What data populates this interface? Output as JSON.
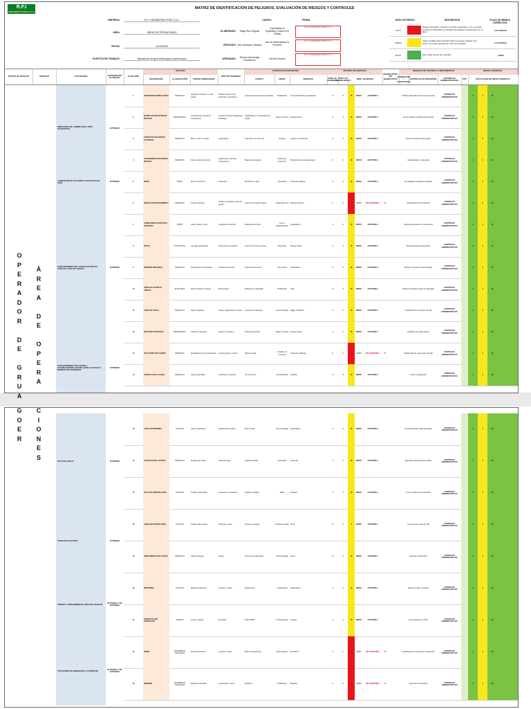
{
  "header": {
    "logo_text": "R.F.I",
    "logo_sub": "INGENIERIAS PERU S.A.C",
    "title": "MATRIZ DE IDENTIFICACIÓN DE PELIGROS, EVALUACIÓN DE RIESGOS Y CONTROLES",
    "empresa_label": "EMPRESA",
    "empresa_value": "R.F.I. INGENIERIAS PERÚ S.A.C",
    "area_label": "AREA",
    "area_value": "AREAS DE OPERACIONES",
    "fecha_label": "FECHA",
    "fecha_value": "01/10/2016",
    "puestos_label": "PUESTOS DE TRABAJO",
    "puestos_value": "Operadores de grúa telescópica y camión grúa",
    "cargo_label": "CARGO",
    "firma_label": "FIRMA",
    "elaborado_label": "ELABORADO",
    "elaborado_name": "Edgar Ruiz Delgado",
    "elaborado_cargo": "Especialista en Seguridad y Salud en el Trabajo",
    "revisado_label": "REVISADO",
    "revisado_name": "Aina Velasquez Jáuregui",
    "revisado_cargo": "Jefe de Administración y Procesos",
    "aprobado_label": "APROBADO",
    "aprobado_name": "Richard Artunduaga Rivadeneira",
    "aprobado_cargo": "Gerente General",
    "stamp_text": "R.F.I. INGENIERIAS PERU S.A.C"
  },
  "legend": {
    "h_nivel": "NIVEL DE RIESGO",
    "h_desc": "DESCRIPCIÓN",
    "h_plazo": "PLAZO DE MEDIDA CORRECTIVA",
    "rows": [
      {
        "level": "ALTO",
        "color": "#e8141b",
        "desc": "Riesgo intolerable, requiere controles especiales, si no se puede controlar el PELIGRO se paraliza los trabajos operacionales en la labor.",
        "action": "0-24 HORAS"
      },
      {
        "level": "MEDIO",
        "color": "#f8e71c",
        "desc": "Iniciar medidas para eliminar/reducir el riesgo. Evaluar si la acción se puede ejecutar de manera inmediata.",
        "action": "0-72 HORAS"
      },
      {
        "level": "BAJO",
        "color": "#4caf50",
        "desc": "Este riesgo puede ser tolerable.",
        "action": "1 MES"
      }
    ]
  },
  "columns": {
    "puesto": "PUESTO DE TRABAJO",
    "proceso": "PROCESO",
    "actividades": "ACTIVIDADES",
    "rutinaria": "RUTINARIA/NO RUTINARIA",
    "num": "N° PELIGRO",
    "peligro_group": "PELIGRO",
    "descripcion": "DESCRIPCIÓN",
    "clasificacion": "CLASIFICACIÓN",
    "fuente": "FUENTE GENERADORA",
    "efectos": "EFECTOS POSIBLES",
    "controles_group": "CONTROLES EXISTENTES",
    "cuenta": "CUENTA",
    "medio": "MEDIO",
    "individuo": "INDIVIDUO",
    "criterio_group": "CRITERIO DE RIESGOS",
    "severidad": "NIVEL DE SEVERIDAD",
    "consecuencia": "NIVEL DE CONSECUENCIA",
    "nivel": "NIVEL DE RIESGO",
    "significativo": "SIGNIFICATIVO / NO SIGNIFICATIVO",
    "medidas_group": "MEDIDAS DE CONTROL A IMPLEMENTAR",
    "eliminacion": "ELIMINACIÓN / SUSTITUCIÓN",
    "ingenieria": "CONTROLES DE INGENIERÍA",
    "administrativos": "CONTROLES ADMINISTRATIVOS",
    "epp": "EPP",
    "residual_group": "RIESGO RESIDUAL",
    "evaluacion": "EVALUACIÓN DE RIESGO RESIDUAL"
  },
  "area_label_chars": [
    "O",
    "P",
    "E",
    "R",
    "A",
    "D",
    "O",
    "R",
    "",
    "D",
    "E",
    "",
    "G",
    "R",
    "U",
    "A",
    "",
    "Y",
    "",
    "R",
    "I",
    "O",
    "S",
    "G",
    "O",
    "E",
    "R"
  ],
  "area_label_chars_2": [
    "Á",
    "R",
    "E",
    "A",
    "",
    "D",
    "E",
    "",
    "O",
    "P",
    "E",
    "R",
    "A",
    "C",
    "I",
    "O",
    "N",
    "E",
    "S"
  ],
  "activities_p1": [
    {
      "name": "INSPECCIÓN DEL CAMIÓN GRÚA / GRÚA TELESCÓPICA",
      "routine": "RUTINARIA"
    },
    {
      "name": "CONDUCCIÓN DE UN VEHÍCULO PESADO HACIA ZONA",
      "routine": "RUTINARIA"
    },
    {
      "name": "POSICIONAMIENTO DEL EQUIPO EN ZONA DE TRABAJO / IZAJE DE CARGAS",
      "routine": "RUTINARIA"
    },
    {
      "name": "POSICIONAMIENTO DEL EQUIPO Y ESTABILIZADORES CON RELACIÓN A CARGAS AL MOMENTO DE MANIOBRAS",
      "routine": "RUTINARIA"
    }
  ],
  "activities_p2": [
    {
      "name": "IZAJE DE CARGAS",
      "routine": "RUTINARIA"
    },
    {
      "name": "TRABAJOS EN ALTURA",
      "routine": "RUTINARIA"
    },
    {
      "name": "LIMPIEZA Y MANTENIMIENTO, ORDEN DE TRABAJO",
      "routine": "RUTINARIA Y NO RUTINARIA"
    },
    {
      "name": "SITUACIONES DE EMERGENCIA / ACCIDENTES",
      "routine": "RUTINARIA Y NO RUTINARIA"
    }
  ],
  "rows_p1": [
    {
      "n": "1",
      "desc": "SUPERFICIES IRREGULARES",
      "cls": "MECÁNICO",
      "fte": "Superficie inestable o en mal estado",
      "eff": "Caídas al mismo nivel, torceduras, contusiones",
      "cur": "Inspección previa del área de trabajo",
      "med": "Señalización",
      "ind": "Uso de EPP básico, capacitación",
      "ns": "4",
      "nc": "4",
      "nr": "16",
      "lvl": "MEDIO",
      "acp": "ACEPTABLE",
      "sig": "",
      "ctrl": "Verificar estado del terreno antes de operar",
      "adm": "CONTROLES ADMINISTRATIVOS",
      "r": [
        "4",
        "4",
        "16"
      ]
    },
    {
      "n": "2",
      "desc": "MANIPULACIÓN DE PIEZAS PESADAS",
      "cls": "ERGONÓMICO",
      "fte": "Levantamiento manual de componentes",
      "eff": "Lesiones músculo-esqueléticas, lumbalgias",
      "cur": "Capacitación en manipulación de cargas",
      "med": "Apoyo mecánico",
      "ind": "Pausas activas",
      "ns": "4",
      "nc": "4",
      "nr": "16",
      "lvl": "MEDIO",
      "acp": "ACEPTABLE",
      "sig": "",
      "ctrl": "Uso de ayudas mecánicas para levantar",
      "adm": "CONTROLES ADMINISTRATIVOS",
      "r": [
        "4",
        "4",
        "16"
      ]
    },
    {
      "n": "3",
      "desc": "CONTACTO CON PARTES CALIENTES",
      "cls": "MECÁNICO",
      "fte": "Motor y tubo de escape",
      "eff": "Quemaduras",
      "cur": "Inspección con motor frío",
      "med": "Guardas",
      "ind": "Guantes de protección",
      "ns": "4",
      "nc": "4",
      "nr": "16",
      "lvl": "MEDIO",
      "acp": "ACEPTABLE",
      "sig": "",
      "ctrl": "Esperar enfriamiento del equipo",
      "adm": "CONTROLES ADMINISTRATIVOS",
      "r": [
        "4",
        "4",
        "16"
      ]
    },
    {
      "n": "4",
      "desc": "ATRAPAMIENTO EN PARTES MÓVILES",
      "cls": "MECÁNICO",
      "fte": "Partes móviles de la grúa",
      "eff": "Atrapamiento, fracturas, amputaciones",
      "cur": "Bloqueo de energías",
      "med": "Guardas de protección",
      "ind": "Procedimiento de trabajo seguro",
      "ns": "4",
      "nc": "4",
      "nr": "16",
      "lvl": "MEDIO",
      "acp": "ACEPTABLE",
      "sig": "",
      "ctrl": "Aplicar bloqueo y etiquetado",
      "adm": "CONTROLES ADMINISTRATIVOS",
      "r": [
        "4",
        "4",
        "16"
      ]
    },
    {
      "n": "5",
      "desc": "RUIDO",
      "cls": "FÍSICO",
      "fte": "Motor del vehículo",
      "eff": "Hipoacusia",
      "cur": "Monitoreo de ruido",
      "med": "Silenciador",
      "ind": "Protección auditiva",
      "ns": "4",
      "nc": "4",
      "nr": "16",
      "lvl": "MEDIO",
      "acp": "ACEPTABLE",
      "sig": "",
      "ctrl": "Uso obligatorio de tapones auditivos",
      "adm": "CONTROLES ADMINISTRATIVOS",
      "r": [
        "4",
        "4",
        "16"
      ]
    },
    {
      "n": "6",
      "desc": "VEHÍCULOS EN MOVIMIENTO",
      "cls": "MECÁNICO",
      "fte": "Tránsito vehicular",
      "eff": "Choques, volcaduras, lesiones graves",
      "cur": "Licencia de conducir vigente",
      "med": "Señalización vial",
      "ind": "Manejo defensivo",
      "ns": "2",
      "nc": "2",
      "nr": "4",
      "lvl": "ALTO",
      "acp": "NO ACEPTABLE",
      "sig": "S",
      "ctrl": "Respetar límites de velocidad",
      "adm": "CONTROLES ADMINISTRATIVOS",
      "r": [
        "4",
        "4",
        "16"
      ]
    },
    {
      "n": "7",
      "desc": "CONDICIONES CLIMÁTICAS ADVERSAS",
      "cls": "FÍSICO",
      "fte": "Lluvia, neblina, viento",
      "eff": "Accidentes de tránsito",
      "cur": "Evaluación del clima",
      "med": "Luces y limpiaparabrisas",
      "ind": "Capacitación",
      "ns": "4",
      "nc": "4",
      "nr": "16",
      "lvl": "MEDIO",
      "acp": "ACEPTABLE",
      "sig": "",
      "ctrl": "Suspender operación en clima severo",
      "adm": "CONTROLES ADMINISTRATIVOS",
      "r": [
        "4",
        "4",
        "16"
      ]
    },
    {
      "n": "8",
      "desc": "FATIGA",
      "cls": "PSICOSOCIAL",
      "fte": "Jornadas prolongadas",
      "eff": "Somnolencia, accidentes",
      "cur": "Control de horas de manejo",
      "med": "Descansos",
      "ind": "Pausas activas",
      "ns": "4",
      "nc": "4",
      "nr": "16",
      "lvl": "MEDIO",
      "acp": "ACEPTABLE",
      "sig": "",
      "ctrl": "Respetar horarios de descanso",
      "adm": "CONTROLES ADMINISTRATIVOS",
      "r": [
        "4",
        "4",
        "16"
      ]
    },
    {
      "n": "9",
      "desc": "TERRENO INESTABLE",
      "cls": "MECÁNICO",
      "fte": "Suelo blando o desnivelado",
      "eff": "Volcadura del equipo",
      "cur": "Inspección del terreno",
      "med": "Uso de tacos",
      "ind": "Capacitación",
      "ns": "4",
      "nc": "4",
      "nr": "16",
      "lvl": "MEDIO",
      "acp": "ACEPTABLE",
      "sig": "",
      "ctrl": "Nivelar y compactar zona de trabajo",
      "adm": "CONTROLES ADMINISTRATIVOS",
      "r": [
        "4",
        "4",
        "16"
      ]
    },
    {
      "n": "10",
      "desc": "LÍNEAS ELÉCTRICAS AÉREAS",
      "cls": "ELÉCTRICO",
      "fte": "Redes eléctricas cercanas",
      "eff": "Electrocución",
      "cur": "Distancias de seguridad",
      "med": "Señalización",
      "ind": "Vigía",
      "ns": "4",
      "nc": "4",
      "nr": "16",
      "lvl": "MEDIO",
      "acp": "ACEPTABLE",
      "sig": "",
      "ctrl": "Mantener distancia mínima de seguridad",
      "adm": "CONTROLES ADMINISTRATIVOS",
      "r": [
        "4",
        "4",
        "16"
      ]
    },
    {
      "n": "11",
      "desc": "CAÍDA DE CARGA",
      "cls": "MECÁNICO",
      "fte": "Falla en aparejos",
      "eff": "Golpes, aplastamiento, muerte",
      "cur": "Inspección de aparejos",
      "med": "Área restringida",
      "ind": "Rigger certificado",
      "ns": "4",
      "nc": "4",
      "nr": "16",
      "lvl": "MEDIO",
      "acp": "ACEPTABLE",
      "sig": "",
      "ctrl": "Certificación de accesorios de izaje",
      "adm": "CONTROLES ADMINISTRATIVOS",
      "r": [
        "4",
        "4",
        "16"
      ]
    },
    {
      "n": "12",
      "desc": "POSTURAS FORZADAS",
      "cls": "ERGONÓMICO",
      "fte": "Cabina de operación",
      "eff": "Dolores musculares",
      "cur": "Asiento ergonómico",
      "med": "Ajuste de cabina",
      "ind": "Pausas activas",
      "ns": "4",
      "nc": "4",
      "nr": "16",
      "lvl": "MEDIO",
      "acp": "ACEPTABLE",
      "sig": "",
      "ctrl": "Programa de pausas activas",
      "adm": "CONTROLES ADMINISTRATIVOS",
      "r": [
        "4",
        "4",
        "16"
      ]
    },
    {
      "n": "13",
      "desc": "VOLCADURA DEL EQUIPO",
      "cls": "MECÁNICO",
      "fte": "Estabilizadores mal posicionados",
      "eff": "Lesiones graves, muerte",
      "cur": "Tabla de carga",
      "med": "Limitador de momento",
      "ind": "Operador certificado",
      "ns": "2",
      "nc": "2",
      "nr": "4",
      "lvl": "ALTO",
      "acp": "NO ACEPTABLE",
      "sig": "S",
      "ctrl": "Verificar tabla de carga antes del izaje",
      "adm": "CONTROLES ADMINISTRATIVOS",
      "r": [
        "4",
        "4",
        "16"
      ]
    },
    {
      "n": "14",
      "desc": "GOLPES CON LA CARGA",
      "cls": "MECÁNICO",
      "fte": "Carga suspendida",
      "eff": "Contusiones, fracturas",
      "cur": "Uso de vientos",
      "med": "Área delimitada",
      "ind": "Señalero",
      "ns": "4",
      "nc": "4",
      "nr": "16",
      "lvl": "MEDIO",
      "acp": "ACEPTABLE",
      "sig": "",
      "ctrl": "Uso de cuerdas guía",
      "adm": "CONTROLES ADMINISTRATIVOS",
      "r": [
        "4",
        "4",
        "16"
      ]
    }
  ],
  "rows_p2": [
    {
      "n": "15",
      "desc": "CARGA SUSPENDIDA",
      "cls": "LOCATIVO",
      "fte": "Izaje de materiales",
      "eff": "Aplastamiento, golpes",
      "cur": "Plan de izaje",
      "med": "Área restringida",
      "ind": "Capacitación",
      "ns": "4",
      "nc": "4",
      "nr": "16",
      "lvl": "MEDIO",
      "acp": "ACEPTABLE",
      "sig": "",
      "ctrl": "No transitar bajo carga suspendida",
      "adm": "CONTROLES ADMINISTRATIVOS",
      "r": [
        "4",
        "4",
        "16"
      ]
    },
    {
      "n": "16",
      "desc": "CABLES EN MAL ESTADO",
      "cls": "MECÁNICO",
      "fte": "Desgaste de cables",
      "eff": "Caída de carga",
      "cur": "Inspección diaria",
      "med": "Reemplazo",
      "ind": "Check list",
      "ns": "4",
      "nc": "4",
      "nr": "16",
      "lvl": "MEDIO",
      "acp": "ACEPTABLE",
      "sig": "",
      "ctrl": "Reemplazo programado de cables",
      "adm": "CONTROLES ADMINISTRATIVOS",
      "r": [
        "4",
        "4",
        "16"
      ]
    },
    {
      "n": "17",
      "desc": "FALTA DE COMUNICACIÓN",
      "cls": "LOCATIVO",
      "fte": "Señales inadecuadas",
      "eff": "Accidentes en maniobra",
      "cur": "Código de señales",
      "med": "Radio",
      "ind": "Señalero",
      "ns": "4",
      "nc": "4",
      "nr": "16",
      "lvl": "MEDIO",
      "acp": "ACEPTABLE",
      "sig": "",
      "ctrl": "Uso de radios de comunicación",
      "adm": "CONTROLES ADMINISTRATIVOS",
      "r": [
        "4",
        "4",
        "16"
      ]
    },
    {
      "n": "18",
      "desc": "CAÍDA DE DISTINTO NIVEL",
      "cls": "LOCATIVO",
      "fte": "Trabajo sobre la grúa",
      "eff": "Fracturas, muerte",
      "cur": "Permiso de trabajo",
      "med": "Puntos de anclaje",
      "ind": "Arnés",
      "ns": "2",
      "nc": "4",
      "nr": "8",
      "lvl": "MEDIO",
      "acp": "ACEPTABLE",
      "sig": "",
      "ctrl": "Uso de arnés y línea de vida",
      "adm": "CONTROLES ADMINISTRATIVOS",
      "r": [
        "4",
        "4",
        "16"
      ]
    },
    {
      "n": "19",
      "desc": "HERRAMIENTAS EN ALTURA",
      "cls": "MECÁNICO",
      "fte": "Caída de objetos",
      "eff": "Golpes",
      "cur": "Amarre de herramientas",
      "med": "Zona delimitada",
      "ind": "Casco",
      "ns": "4",
      "nc": "4",
      "nr": "16",
      "lvl": "MEDIO",
      "acp": "ACEPTABLE",
      "sig": "",
      "ctrl": "Asegurar herramientas",
      "adm": "CONTROLES ADMINISTRATIVOS",
      "r": [
        "4",
        "4",
        "16"
      ]
    },
    {
      "n": "20",
      "desc": "DESORDEN",
      "cls": "LOCATIVO",
      "fte": "Materiales dispersos",
      "eff": "Tropiezos, caídas",
      "cur": "Programa 5S",
      "med": "Contenedores",
      "ind": "Capacitación",
      "ns": "4",
      "nc": "4",
      "nr": "16",
      "lvl": "MEDIO",
      "acp": "ACEPTABLE",
      "sig": "",
      "ctrl": "Mantener orden y limpieza",
      "adm": "CONTROLES ADMINISTRATIVOS",
      "r": [
        "4",
        "4",
        "16"
      ]
    },
    {
      "n": "21",
      "desc": "CONTACTO CON SUSTANCIAS",
      "cls": "QUÍMICO",
      "fte": "Aceites y grasas",
      "eff": "Dermatitis",
      "cur": "Hojas MSDS",
      "med": "Kit antiderrame",
      "ind": "Guantes",
      "ns": "4",
      "nc": "4",
      "nr": "16",
      "lvl": "MEDIO",
      "acp": "ACEPTABLE",
      "sig": "",
      "ctrl": "Uso de guantes de nitrilo",
      "adm": "CONTROLES ADMINISTRATIVOS",
      "r": [
        "4",
        "4",
        "16"
      ]
    },
    {
      "n": "22",
      "desc": "SISMO",
      "cls": "FENÓMENOS NATURALES",
      "fte": "Movimiento telúrico",
      "eff": "Lesiones, muerte",
      "cur": "Plan de emergencias",
      "med": "Zonas seguras",
      "ind": "Simulacros",
      "ns": "2",
      "nc": "2",
      "nr": "4",
      "lvl": "ALTO",
      "acp": "NO ACEPTABLE",
      "sig": "S",
      "ctrl": "Capacitación en respuesta a emergencias",
      "adm": "CONTROLES ADMINISTRATIVOS",
      "r": [
        "4",
        "4",
        "16"
      ]
    },
    {
      "n": "23",
      "desc": "INCENDIO",
      "cls": "FENÓMENOS NATURALES",
      "fte": "Material combustible",
      "eff": "Quemaduras, muerte",
      "cur": "Extintores",
      "med": "Señalización",
      "ind": "Brigadas",
      "ns": "2",
      "nc": "2",
      "nr": "4",
      "lvl": "ALTO",
      "acp": "NO ACEPTABLE",
      "sig": "S",
      "ctrl": "Inspección de extintores",
      "adm": "CONTROLES ADMINISTRATIVOS",
      "r": [
        "4",
        "4",
        "16"
      ]
    }
  ]
}
